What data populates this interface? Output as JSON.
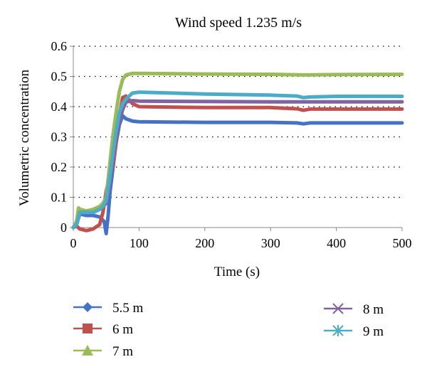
{
  "chart_data": {
    "type": "line",
    "title": "Wind speed 1.235 m/s",
    "xlabel": "Time (s)",
    "ylabel": "Volumetric concentration",
    "xlim": [
      0,
      500
    ],
    "ylim": [
      0,
      0.6
    ],
    "x_ticks": [
      0,
      100,
      200,
      300,
      400,
      500
    ],
    "y_ticks": [
      0,
      0.1,
      0.2,
      0.3,
      0.4,
      0.5,
      0.6
    ],
    "y_tick_labels": [
      "0",
      "0.1",
      "0.2",
      "0.3",
      "0.4",
      "0.5",
      "0.6"
    ],
    "grid": "horizontal dotted",
    "legend_position": "bottom",
    "series": [
      {
        "name": "5.5 m",
        "color": "#4472c4",
        "marker": "diamond",
        "points": [
          [
            0,
            0
          ],
          [
            5,
            0.01
          ],
          [
            10,
            0.045
          ],
          [
            20,
            0.04
          ],
          [
            30,
            0.04
          ],
          [
            40,
            0.035
          ],
          [
            47,
            0.02
          ],
          [
            50,
            -0.02
          ],
          [
            53,
            0.04
          ],
          [
            56,
            0.12
          ],
          [
            60,
            0.19
          ],
          [
            65,
            0.28
          ],
          [
            70,
            0.34
          ],
          [
            75,
            0.37
          ],
          [
            80,
            0.36
          ],
          [
            90,
            0.352
          ],
          [
            100,
            0.35
          ],
          [
            200,
            0.348
          ],
          [
            300,
            0.348
          ],
          [
            340,
            0.346
          ],
          [
            350,
            0.343
          ],
          [
            360,
            0.346
          ],
          [
            400,
            0.346
          ],
          [
            500,
            0.346
          ]
        ]
      },
      {
        "name": "6 m",
        "color": "#c0504d",
        "marker": "square",
        "points": [
          [
            0,
            0
          ],
          [
            5,
            0.005
          ],
          [
            10,
            -0.005
          ],
          [
            20,
            -0.01
          ],
          [
            30,
            -0.005
          ],
          [
            40,
            0.01
          ],
          [
            45,
            0.05
          ],
          [
            50,
            0.12
          ],
          [
            55,
            0.17
          ],
          [
            60,
            0.2
          ],
          [
            65,
            0.28
          ],
          [
            70,
            0.37
          ],
          [
            75,
            0.43
          ],
          [
            80,
            0.435
          ],
          [
            90,
            0.41
          ],
          [
            100,
            0.4
          ],
          [
            200,
            0.397
          ],
          [
            300,
            0.397
          ],
          [
            340,
            0.393
          ],
          [
            350,
            0.388
          ],
          [
            360,
            0.392
          ],
          [
            400,
            0.392
          ],
          [
            500,
            0.392
          ]
        ]
      },
      {
        "name": "7 m",
        "color": "#9bbb59",
        "marker": "triangle",
        "points": [
          [
            0,
            0
          ],
          [
            5,
            0.02
          ],
          [
            8,
            0.065
          ],
          [
            10,
            0.06
          ],
          [
            20,
            0.055
          ],
          [
            30,
            0.06
          ],
          [
            40,
            0.07
          ],
          [
            45,
            0.08
          ],
          [
            50,
            0.1
          ],
          [
            55,
            0.2
          ],
          [
            60,
            0.3
          ],
          [
            65,
            0.38
          ],
          [
            70,
            0.45
          ],
          [
            75,
            0.49
          ],
          [
            80,
            0.505
          ],
          [
            90,
            0.51
          ],
          [
            100,
            0.51
          ],
          [
            200,
            0.508
          ],
          [
            300,
            0.507
          ],
          [
            350,
            0.505
          ],
          [
            400,
            0.506
          ],
          [
            500,
            0.507
          ]
        ]
      },
      {
        "name": "8 m",
        "color": "#8064a2",
        "marker": "x",
        "points": [
          [
            0,
            0
          ],
          [
            5,
            0.01
          ],
          [
            10,
            0.05
          ],
          [
            20,
            0.05
          ],
          [
            30,
            0.05
          ],
          [
            40,
            0.06
          ],
          [
            45,
            0.07
          ],
          [
            50,
            0.08
          ],
          [
            55,
            0.14
          ],
          [
            60,
            0.22
          ],
          [
            65,
            0.3
          ],
          [
            70,
            0.35
          ],
          [
            75,
            0.39
          ],
          [
            80,
            0.415
          ],
          [
            90,
            0.42
          ],
          [
            100,
            0.418
          ],
          [
            200,
            0.417
          ],
          [
            300,
            0.416
          ],
          [
            400,
            0.416
          ],
          [
            500,
            0.416
          ]
        ]
      },
      {
        "name": "9 m",
        "color": "#4bacc6",
        "marker": "star",
        "points": [
          [
            0,
            0
          ],
          [
            5,
            0.01
          ],
          [
            10,
            0.05
          ],
          [
            20,
            0.05
          ],
          [
            30,
            0.05
          ],
          [
            40,
            0.06
          ],
          [
            45,
            0.07
          ],
          [
            50,
            0.09
          ],
          [
            55,
            0.16
          ],
          [
            60,
            0.24
          ],
          [
            65,
            0.32
          ],
          [
            70,
            0.38
          ],
          [
            75,
            0.41
          ],
          [
            80,
            0.425
          ],
          [
            90,
            0.445
          ],
          [
            100,
            0.448
          ],
          [
            150,
            0.445
          ],
          [
            200,
            0.442
          ],
          [
            300,
            0.438
          ],
          [
            340,
            0.435
          ],
          [
            350,
            0.43
          ],
          [
            360,
            0.432
          ],
          [
            400,
            0.434
          ],
          [
            500,
            0.434
          ]
        ]
      }
    ]
  }
}
